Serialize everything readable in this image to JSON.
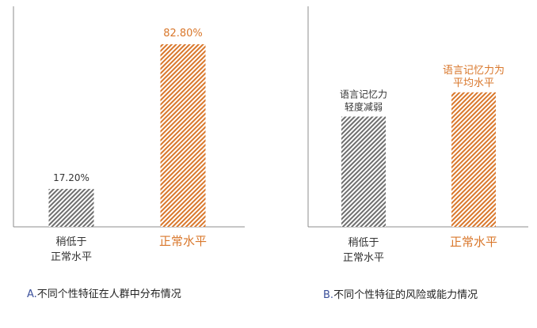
{
  "colors": {
    "gray_bar": "#6e6e6e",
    "orange_bar": "#d9772b",
    "axis": "#8c8c8c",
    "dark_text": "#333333",
    "orange_text": "#d9772b"
  },
  "chart_data": [
    {
      "type": "bar",
      "caption_prefix": "A.",
      "caption": "不同个性特征在人群中分布情况",
      "categories": [
        [
          "稍低于",
          "正常水平"
        ],
        [
          "正常水平"
        ]
      ],
      "values": [
        17.2,
        82.8
      ],
      "value_labels": [
        "17.20%",
        "82.80%"
      ],
      "ylim": [
        0,
        100
      ],
      "grid": false,
      "bar_colors": [
        "gray",
        "orange"
      ]
    },
    {
      "type": "bar",
      "caption_prefix": "B.",
      "caption": "不同个性特征的风险或能力情况",
      "categories": [
        [
          "稍低于",
          "正常水平"
        ],
        [
          "正常水平"
        ]
      ],
      "values": [
        0.5,
        0.61
      ],
      "value_labels": [
        [
          "语言记忆力",
          "轻度减弱"
        ],
        [
          "语言记忆力为",
          "平均水平"
        ]
      ],
      "ylim": [
        0,
        1
      ],
      "grid": false,
      "bar_colors": [
        "gray",
        "orange"
      ]
    }
  ]
}
